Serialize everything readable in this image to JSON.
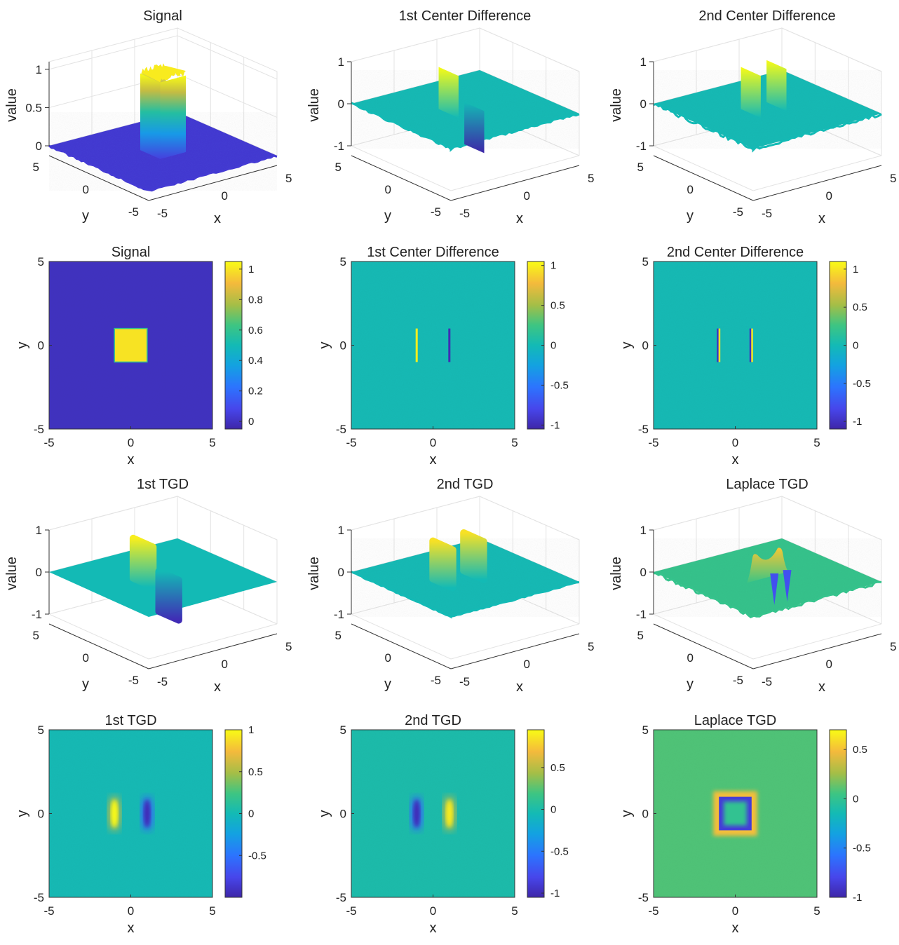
{
  "figure": {
    "type": "subplot-grid",
    "rows": 4,
    "cols": 3
  },
  "chart_data": [
    {
      "id": "s1",
      "type": "surface3d",
      "title": "Signal",
      "xlabel": "x",
      "ylabel": "y",
      "zlabel": "value",
      "xticks": [
        "-5",
        "0",
        "5"
      ],
      "yticks": [
        "5",
        "0",
        "-5"
      ],
      "zticks": [
        "1",
        "0.5",
        "0"
      ],
      "zlim": [
        0,
        1.1
      ],
      "feature": "square",
      "center": [
        0,
        0
      ],
      "half_width": 1,
      "height": 1,
      "noise": 0.05
    },
    {
      "id": "s2",
      "type": "surface3d",
      "title": "1st Center Difference",
      "xlabel": "x",
      "ylabel": "y",
      "zlabel": "value",
      "xticks": [
        "-5",
        "0",
        "5"
      ],
      "yticks": [
        "5",
        "0",
        "-5"
      ],
      "zticks": [
        "1",
        "0",
        "-1"
      ],
      "zlim": [
        -1,
        1
      ],
      "feature": "ridges",
      "ridges": [
        {
          "x": -1,
          "value": 1
        },
        {
          "x": 1,
          "value": -1
        }
      ],
      "noise": 0.05
    },
    {
      "id": "s3",
      "type": "surface3d",
      "title": "2nd Center Difference",
      "xlabel": "x",
      "ylabel": "y",
      "zlabel": "value",
      "xticks": [
        "-5",
        "0",
        "5"
      ],
      "yticks": [
        "5",
        "0",
        "-5"
      ],
      "zticks": [
        "1",
        "0",
        "-1"
      ],
      "zlim": [
        -1,
        1
      ],
      "feature": "double-ridges",
      "ridges": [
        {
          "x": -1,
          "value": 1
        },
        {
          "x": 1,
          "value": 1
        }
      ],
      "noise": 0.1
    },
    {
      "id": "h1",
      "type": "heatmap",
      "title": "Signal",
      "xlabel": "x",
      "ylabel": "y",
      "xlim": [
        -5,
        5
      ],
      "ylim": [
        -5,
        5
      ],
      "xticks": [
        "-5",
        "0",
        "5"
      ],
      "yticks": [
        "5",
        "0",
        "-5"
      ],
      "clim": [
        -0.05,
        1.05
      ],
      "colorbar_ticks": [
        "1",
        "0.8",
        "0.6",
        "0.4",
        "0.2",
        "0"
      ],
      "colorbar_tick_values": [
        1,
        0.8,
        0.6,
        0.4,
        0.2,
        0
      ],
      "feature": "square",
      "square": {
        "xmin": -1,
        "xmax": 1,
        "ymin": -1,
        "ymax": 1,
        "value": 1
      },
      "background": 0
    },
    {
      "id": "h2",
      "type": "heatmap",
      "title": "1st Center Difference",
      "xlabel": "x",
      "ylabel": "y",
      "xlim": [
        -5,
        5
      ],
      "ylim": [
        -5,
        5
      ],
      "xticks": [
        "-5",
        "0",
        "5"
      ],
      "yticks": [
        "5",
        "0",
        "-5"
      ],
      "clim": [
        -1.05,
        1.05
      ],
      "colorbar_ticks": [
        "1",
        "0.5",
        "0",
        "-0.5",
        "-1"
      ],
      "colorbar_tick_values": [
        1,
        0.5,
        0,
        -0.5,
        -1
      ],
      "feature": "lines",
      "lines": [
        {
          "x": -1,
          "value": 1
        },
        {
          "x": 1,
          "value": -1
        }
      ],
      "line_ymin": -1,
      "line_ymax": 1,
      "background": 0
    },
    {
      "id": "h3",
      "type": "heatmap",
      "title": "2nd Center Difference",
      "xlabel": "x",
      "ylabel": "y",
      "xlim": [
        -5,
        5
      ],
      "ylim": [
        -5,
        5
      ],
      "xticks": [
        "-5",
        "0",
        "5"
      ],
      "yticks": [
        "5",
        "0",
        "-5"
      ],
      "clim": [
        -1.1,
        1.1
      ],
      "colorbar_ticks": [
        "1",
        "0.5",
        "0",
        "-0.5",
        "-1"
      ],
      "colorbar_tick_values": [
        1,
        0.5,
        0,
        -0.5,
        -1
      ],
      "feature": "double-lines",
      "lines": [
        {
          "x": -1,
          "value": 1
        },
        {
          "x": 1,
          "value": 1
        }
      ],
      "line_ymin": -1,
      "line_ymax": 1,
      "background": 0
    },
    {
      "id": "s4",
      "type": "surface3d",
      "title": "1st TGD",
      "xlabel": "x",
      "ylabel": "y",
      "zlabel": "value",
      "xticks": [
        "-5",
        "0",
        "5"
      ],
      "yticks": [
        "5",
        "0",
        "-5"
      ],
      "zticks": [
        "1",
        "0",
        "-1"
      ],
      "zlim": [
        -1,
        1
      ],
      "feature": "smooth-ridges",
      "ridges": [
        {
          "x": -1,
          "value": 0.95
        },
        {
          "x": 1,
          "value": -0.95
        }
      ],
      "noise": 0.0
    },
    {
      "id": "s5",
      "type": "surface3d",
      "title": "2nd TGD",
      "xlabel": "x",
      "ylabel": "y",
      "zlabel": "value",
      "xticks": [
        "-5",
        "0",
        "5"
      ],
      "yticks": [
        "5",
        "0",
        "-5"
      ],
      "zticks": [
        "1",
        "0",
        "-1"
      ],
      "zlim": [
        -1,
        1
      ],
      "feature": "smooth-double-ridges",
      "ridges": [
        {
          "x": -1.2,
          "value": 0.9
        },
        {
          "x": 1.2,
          "value": 0.9
        }
      ],
      "noise": 0.03
    },
    {
      "id": "s6",
      "type": "surface3d",
      "title": "Laplace TGD",
      "xlabel": "x",
      "ylabel": "y",
      "zlabel": "value",
      "xticks": [
        "-5",
        "0",
        "5"
      ],
      "yticks": [
        "5",
        "0",
        "-5"
      ],
      "zticks": [
        "1",
        "0",
        "-1"
      ],
      "zlim": [
        -1,
        1
      ],
      "feature": "laplace-ring",
      "ring_value": 0.5,
      "noise": 0.08
    },
    {
      "id": "h4",
      "type": "heatmap",
      "title": "1st TGD",
      "xlabel": "x",
      "ylabel": "y",
      "xlim": [
        -5,
        5
      ],
      "ylim": [
        -5,
        5
      ],
      "xticks": [
        "-5",
        "0",
        "5"
      ],
      "yticks": [
        "5",
        "0",
        "-5"
      ],
      "clim": [
        -1,
        1
      ],
      "colorbar_ticks": [
        "1",
        "0.5",
        "0",
        "-0.5"
      ],
      "colorbar_tick_values": [
        1,
        0.5,
        0,
        -0.5
      ],
      "feature": "smooth-lines",
      "lines": [
        {
          "x": -1,
          "value": 1
        },
        {
          "x": 1,
          "value": -0.95
        }
      ],
      "background": 0
    },
    {
      "id": "h5",
      "type": "heatmap",
      "title": "2nd TGD",
      "xlabel": "x",
      "ylabel": "y",
      "xlim": [
        -5,
        5
      ],
      "ylim": [
        -5,
        5
      ],
      "xticks": [
        "-5",
        "0",
        "5"
      ],
      "yticks": [
        "5",
        "0",
        "-5"
      ],
      "clim": [
        -1.05,
        0.95
      ],
      "colorbar_ticks": [
        "0.5",
        "0",
        "-0.5",
        "-1"
      ],
      "colorbar_tick_values": [
        0.5,
        0,
        -0.5,
        -1
      ],
      "feature": "smooth-double-lines",
      "lines": [
        {
          "x": -1,
          "value": -1
        },
        {
          "x": 1,
          "value": 0.9
        }
      ],
      "background": 0
    },
    {
      "id": "h6",
      "type": "heatmap",
      "title": "Laplace TGD",
      "xlabel": "x",
      "ylabel": "y",
      "xlim": [
        -5,
        5
      ],
      "ylim": [
        -5,
        5
      ],
      "xticks": [
        "-5",
        "0",
        "5"
      ],
      "yticks": [
        "5",
        "0",
        "-5"
      ],
      "clim": [
        -1,
        0.7
      ],
      "colorbar_ticks": [
        "0.5",
        "0",
        "-0.5",
        "-1"
      ],
      "colorbar_tick_values": [
        0.5,
        0,
        -0.5,
        -1
      ],
      "feature": "laplace-square",
      "square": {
        "xmin": -1,
        "xmax": 1,
        "ymin": -1,
        "ymax": 1
      },
      "inner_value": -0.85,
      "outer_value": 0.5,
      "background": 0.1
    }
  ]
}
